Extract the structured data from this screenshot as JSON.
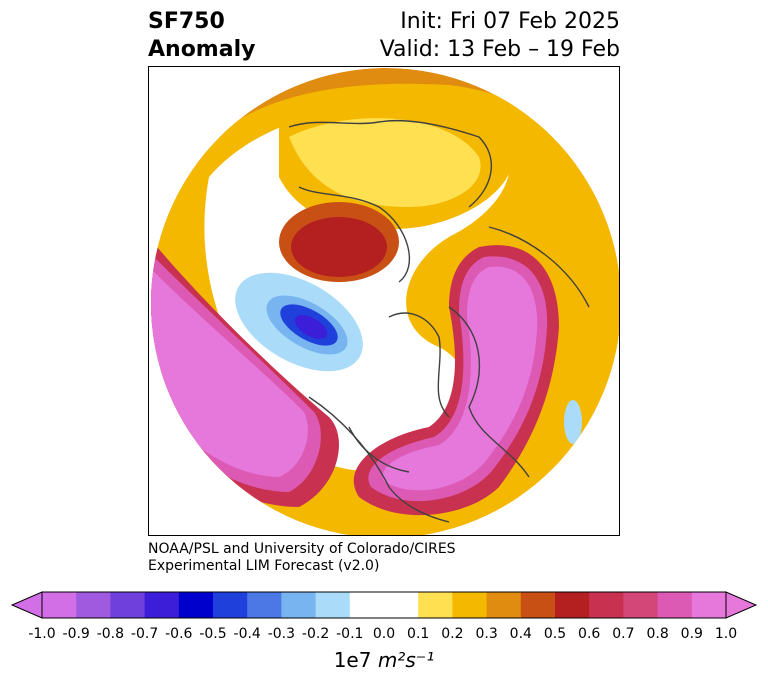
{
  "title": {
    "variable": "SF750",
    "subtitle": "Anomaly",
    "init": "Init: Fri 07 Feb 2025",
    "valid": "Valid: 13 Feb – 19 Feb"
  },
  "credit": {
    "line1": "NOAA/PSL and University of Colorado/CIRES",
    "line2": "Experimental LIM Forecast (v2.0)"
  },
  "colorbar": {
    "ticks": [
      "-1.0",
      "-0.9",
      "-0.8",
      "-0.7",
      "-0.6",
      "-0.5",
      "-0.4",
      "-0.3",
      "-0.2",
      "-0.1",
      "0.0",
      "0.1",
      "0.2",
      "0.3",
      "0.4",
      "0.5",
      "0.6",
      "0.7",
      "0.8",
      "0.9",
      "1.0"
    ],
    "colors": [
      "#d26ee6",
      "#a05ae0",
      "#7040dc",
      "#3c1ed8",
      "#0000cc",
      "#2040dc",
      "#4c78e6",
      "#78b4f0",
      "#aadcfa",
      "#ffffff",
      "#ffffff",
      "#ffe050",
      "#f4b800",
      "#e08c10",
      "#c85014",
      "#b42020",
      "#c83250",
      "#d24678",
      "#dc5ab4",
      "#e678dc"
    ],
    "under_color": "#d26ee6",
    "over_color": "#e678dc",
    "unit_prefix": "1e7",
    "unit": "m²s⁻¹"
  },
  "map": {
    "projection": "north-polar-stereographic",
    "field": "streamfunction anomaly at 750 hPa"
  }
}
